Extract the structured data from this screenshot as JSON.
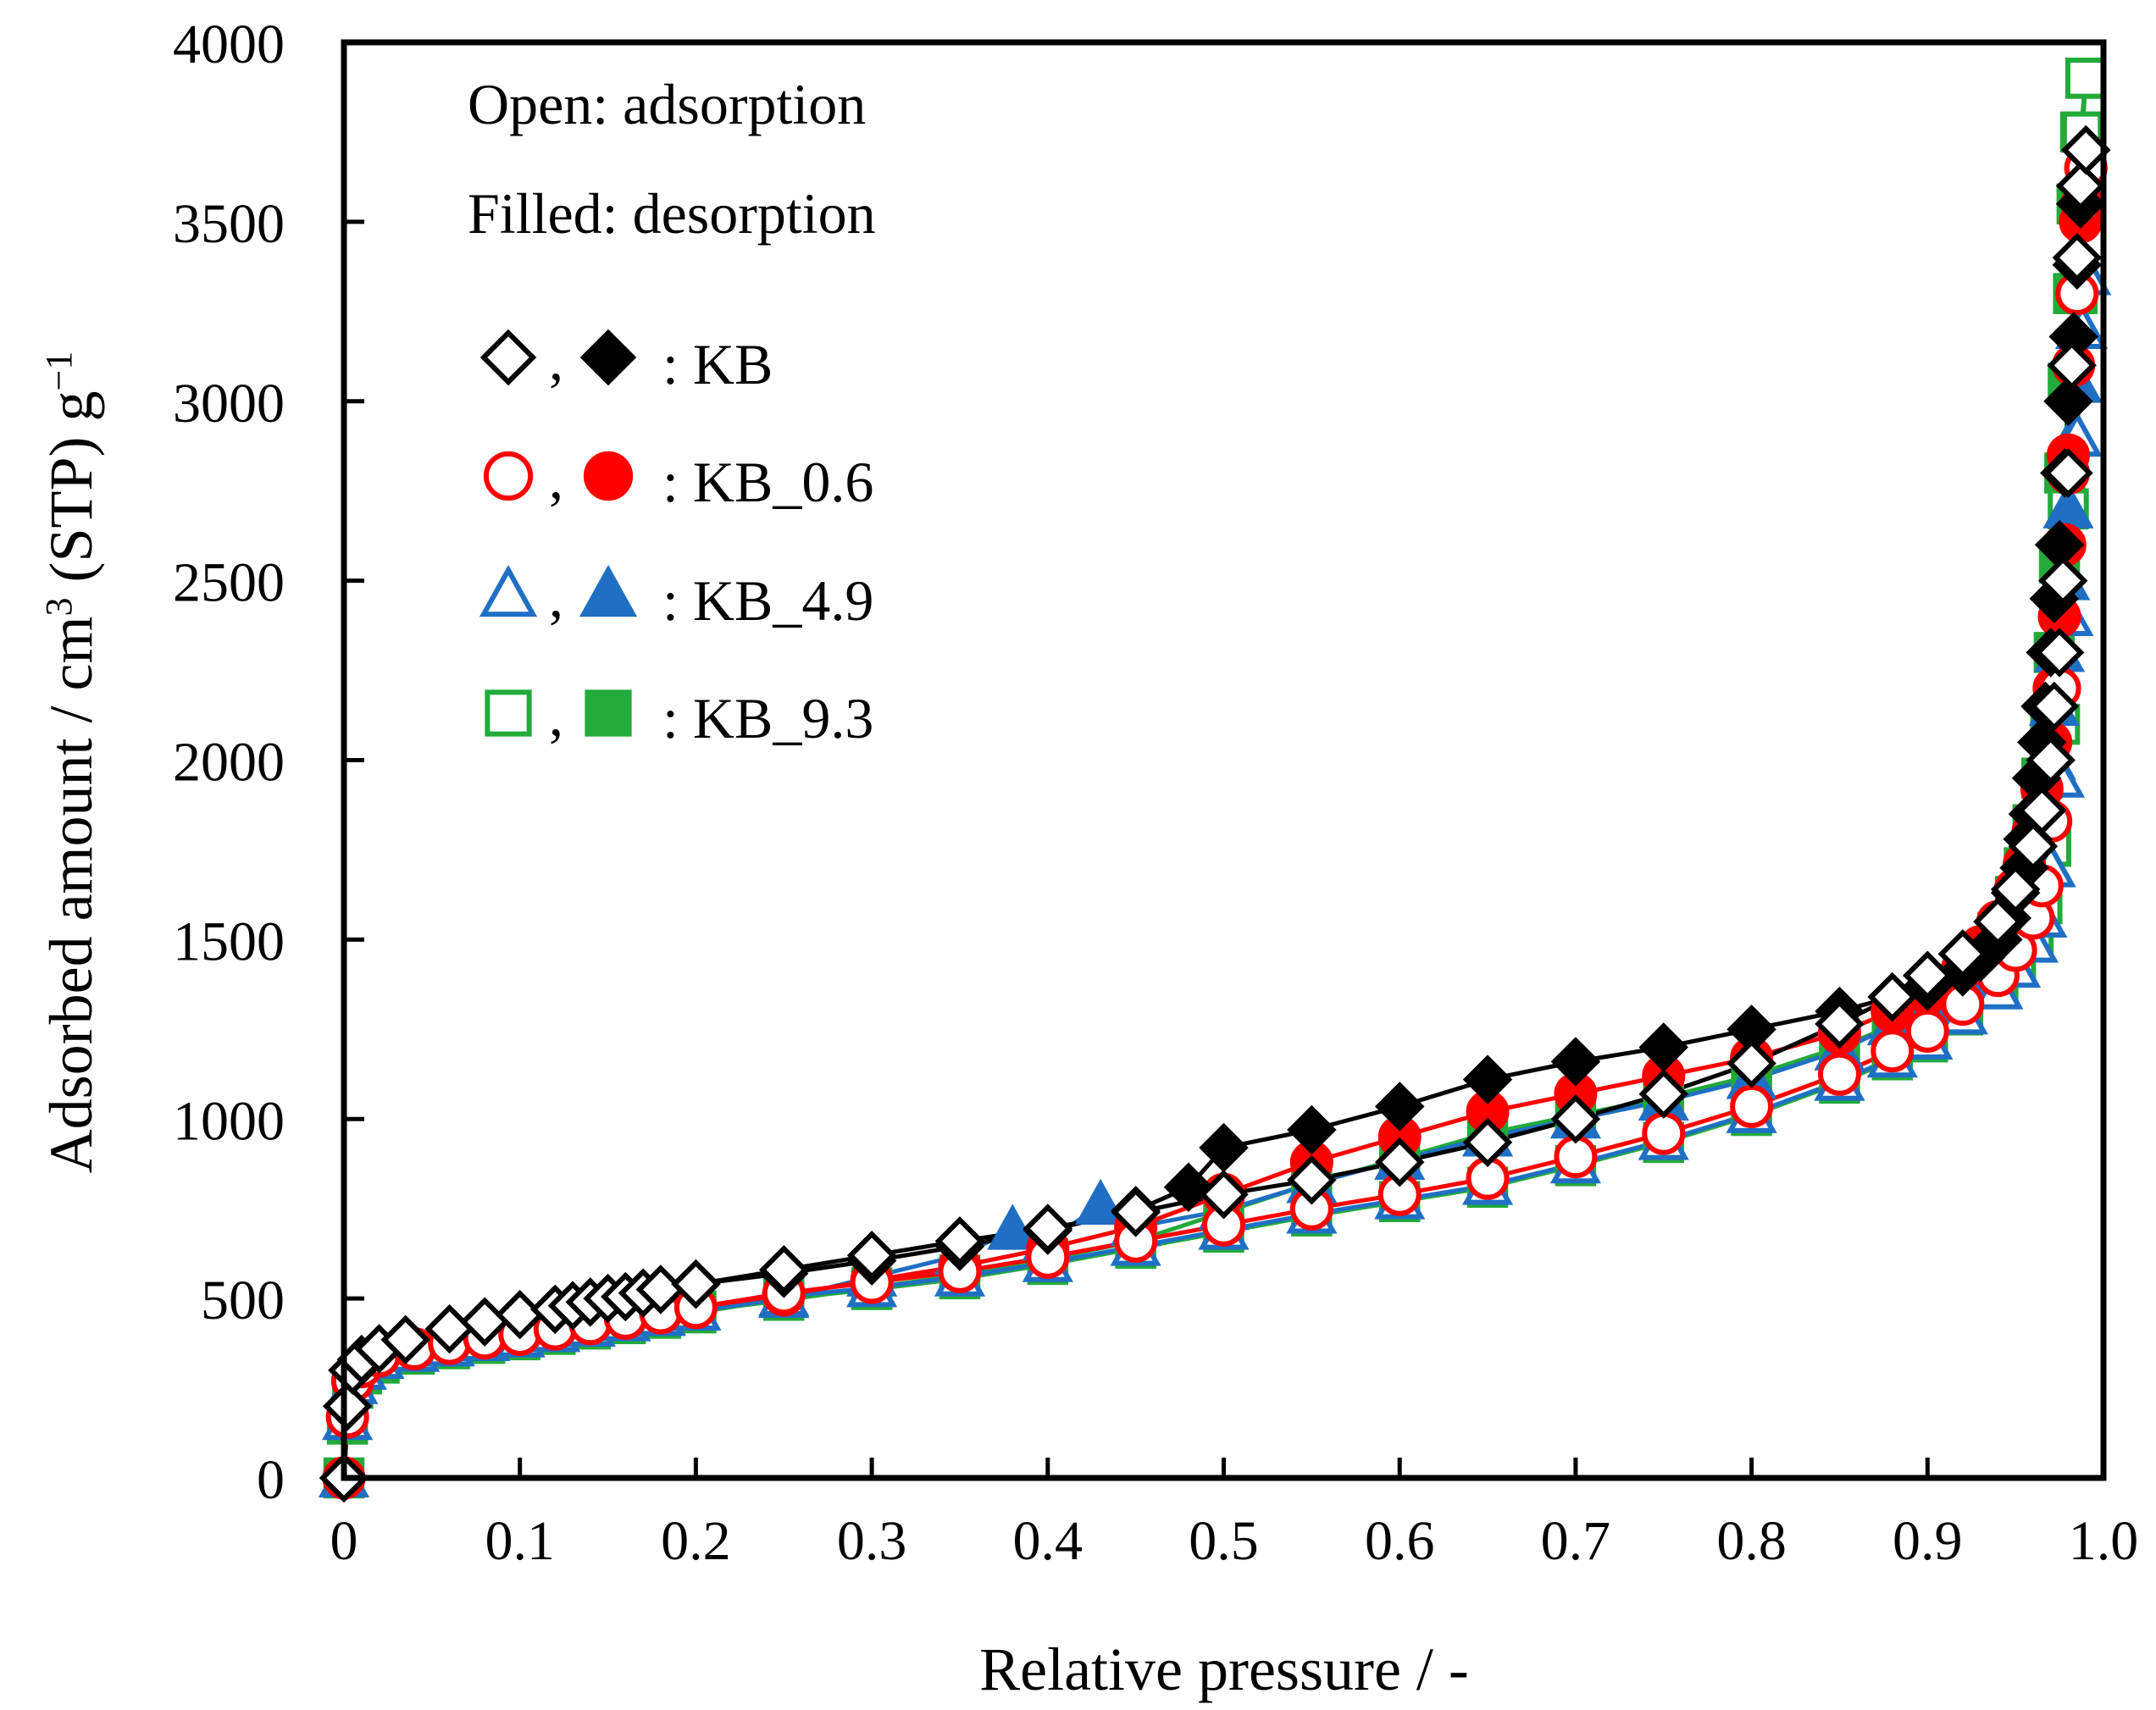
{
  "chart_data": {
    "type": "scatter",
    "xlabel": "Relative pressure / -",
    "ylabel": {
      "main": "Adsorbed amount / cm",
      "sup1": "3",
      "mid": " (STP) g",
      "sup2": "−1"
    },
    "xlim": [
      0,
      1.0
    ],
    "ylim": [
      0,
      4000
    ],
    "x_ticks": [
      0,
      0.1,
      0.2,
      0.3,
      0.4,
      0.5,
      0.6,
      0.7,
      0.8,
      0.9,
      1.0
    ],
    "x_tick_labels": [
      "0",
      "0.1",
      "0.2",
      "0.3",
      "0.4",
      "0.5",
      "0.6",
      "0.7",
      "0.8",
      "0.9",
      "1.0"
    ],
    "y_ticks": [
      0,
      500,
      1000,
      1500,
      2000,
      2500,
      3000,
      3500,
      4000
    ],
    "y_tick_labels": [
      "0",
      "500",
      "1000",
      "1500",
      "2000",
      "2500",
      "3000",
      "3500",
      "4000"
    ],
    "annotations": [
      "Open: adsorption",
      "Filled: desorption"
    ],
    "legend": [
      {
        "label": ": KB",
        "marker": "diamond",
        "color": "#000000"
      },
      {
        "label": ": KB_0.6",
        "marker": "circle",
        "color": "#ff0000"
      },
      {
        "label": ": KB_4.9",
        "marker": "triangle",
        "color": "#1f6fc4"
      },
      {
        "label": ": KB_9.3",
        "marker": "square",
        "color": "#22aa3a"
      }
    ],
    "series": [
      {
        "name": "KB_9.3",
        "marker": "square",
        "color": "#22aa3a",
        "adsorption": {
          "x": [
            0.0,
            0.002,
            0.005,
            0.01,
            0.02,
            0.04,
            0.06,
            0.08,
            0.1,
            0.12,
            0.14,
            0.16,
            0.18,
            0.2,
            0.25,
            0.3,
            0.35,
            0.4,
            0.45,
            0.5,
            0.55,
            0.6,
            0.65,
            0.7,
            0.75,
            0.8,
            0.85,
            0.88,
            0.9,
            0.92,
            0.94,
            0.95,
            0.96,
            0.965,
            0.97,
            0.975,
            0.98,
            0.985,
            0.988,
            0.99
          ],
          "y": [
            0,
            150,
            250,
            290,
            320,
            345,
            360,
            375,
            385,
            400,
            415,
            430,
            445,
            460,
            500,
            525,
            555,
            595,
            640,
            685,
            730,
            770,
            810,
            870,
            935,
            1010,
            1100,
            1165,
            1215,
            1290,
            1370,
            1440,
            1520,
            1600,
            1760,
            2100,
            2700,
            3300,
            3750,
            3900
          ]
        },
        "desorption": {
          "x": [
            0.99,
            0.987,
            0.985,
            0.983,
            0.98,
            0.978,
            0.975,
            0.972,
            0.97,
            0.965,
            0.96,
            0.955,
            0.95,
            0.94,
            0.93,
            0.92,
            0.9,
            0.88,
            0.85,
            0.8,
            0.75,
            0.7,
            0.65,
            0.6,
            0.55,
            0.5,
            0.45,
            0.4,
            0.35,
            0.3,
            0.25,
            0.2
          ],
          "y": [
            3900,
            3750,
            3550,
            3300,
            3050,
            2800,
            2550,
            2300,
            2100,
            1950,
            1820,
            1700,
            1620,
            1520,
            1440,
            1380,
            1310,
            1260,
            1200,
            1120,
            1060,
            1010,
            960,
            890,
            820,
            740,
            660,
            610,
            565,
            530,
            495,
            465
          ]
        }
      },
      {
        "name": "KB_4.9",
        "marker": "triangle",
        "color": "#1f6fc4",
        "adsorption": {
          "x": [
            0.0,
            0.002,
            0.005,
            0.01,
            0.02,
            0.04,
            0.06,
            0.08,
            0.1,
            0.12,
            0.14,
            0.16,
            0.18,
            0.2,
            0.25,
            0.3,
            0.35,
            0.4,
            0.45,
            0.5,
            0.55,
            0.6,
            0.65,
            0.7,
            0.75,
            0.8,
            0.85,
            0.88,
            0.9,
            0.92,
            0.94,
            0.95,
            0.96,
            0.965,
            0.97,
            0.975,
            0.98,
            0.985,
            0.988,
            0.99
          ],
          "y": [
            0,
            160,
            260,
            300,
            330,
            350,
            365,
            380,
            390,
            405,
            420,
            435,
            450,
            465,
            505,
            530,
            560,
            600,
            645,
            690,
            735,
            775,
            815,
            875,
            940,
            1015,
            1105,
            1170,
            1220,
            1290,
            1360,
            1420,
            1490,
            1560,
            1700,
            1950,
            2400,
            2900,
            3200,
            3350
          ]
        },
        "desorption": {
          "x": [
            0.99,
            0.987,
            0.985,
            0.983,
            0.98,
            0.978,
            0.975,
            0.972,
            0.97,
            0.965,
            0.96,
            0.955,
            0.95,
            0.94,
            0.93,
            0.92,
            0.9,
            0.88,
            0.85,
            0.8,
            0.75,
            0.7,
            0.65,
            0.6,
            0.55,
            0.5,
            0.45,
            0.43,
            0.4,
            0.38,
            0.35,
            0.3,
            0.25,
            0.2
          ],
          "y": [
            3350,
            3200,
            3050,
            2900,
            2700,
            2500,
            2300,
            2150,
            2000,
            1880,
            1770,
            1680,
            1600,
            1510,
            1440,
            1380,
            1310,
            1260,
            1190,
            1110,
            1050,
            1000,
            950,
            885,
            820,
            745,
            700,
            760,
            660,
            690,
            620,
            560,
            500,
            465
          ]
        }
      },
      {
        "name": "KB_0.6",
        "marker": "circle",
        "color": "#ff0000",
        "adsorption": {
          "x": [
            0.0,
            0.002,
            0.005,
            0.01,
            0.02,
            0.04,
            0.06,
            0.08,
            0.1,
            0.12,
            0.14,
            0.16,
            0.18,
            0.2,
            0.25,
            0.3,
            0.35,
            0.4,
            0.45,
            0.5,
            0.55,
            0.6,
            0.65,
            0.7,
            0.75,
            0.8,
            0.85,
            0.88,
            0.9,
            0.92,
            0.94,
            0.95,
            0.96,
            0.965,
            0.97,
            0.975,
            0.98,
            0.985,
            0.988,
            0.99
          ],
          "y": [
            0,
            170,
            270,
            310,
            340,
            360,
            375,
            390,
            400,
            415,
            430,
            445,
            460,
            475,
            515,
            545,
            575,
            615,
            660,
            705,
            750,
            790,
            835,
            895,
            960,
            1035,
            1125,
            1190,
            1245,
            1320,
            1400,
            1470,
            1560,
            1650,
            1830,
            2200,
            2800,
            3300,
            3550,
            3650
          ]
        },
        "desorption": {
          "x": [
            0.99,
            0.987,
            0.985,
            0.983,
            0.98,
            0.978,
            0.975,
            0.972,
            0.97,
            0.965,
            0.96,
            0.955,
            0.95,
            0.94,
            0.93,
            0.92,
            0.9,
            0.88,
            0.85,
            0.8,
            0.75,
            0.7,
            0.65,
            0.6,
            0.55,
            0.5,
            0.45,
            0.4,
            0.35,
            0.3,
            0.25,
            0.2
          ],
          "y": [
            3650,
            3500,
            3300,
            3100,
            2850,
            2600,
            2400,
            2200,
            2050,
            1920,
            1800,
            1710,
            1640,
            1550,
            1480,
            1420,
            1350,
            1300,
            1240,
            1170,
            1120,
            1070,
            1020,
            950,
            880,
            790,
            700,
            640,
            590,
            550,
            510,
            475
          ]
        }
      },
      {
        "name": "KB",
        "marker": "diamond",
        "color": "#000000",
        "adsorption": {
          "x": [
            0.0,
            0.002,
            0.005,
            0.01,
            0.02,
            0.035,
            0.06,
            0.08,
            0.1,
            0.12,
            0.13,
            0.14,
            0.15,
            0.16,
            0.17,
            0.18,
            0.2,
            0.25,
            0.3,
            0.35,
            0.4,
            0.45,
            0.5,
            0.55,
            0.6,
            0.65,
            0.7,
            0.75,
            0.8,
            0.85,
            0.88,
            0.9,
            0.92,
            0.94,
            0.95,
            0.96,
            0.965,
            0.97,
            0.972,
            0.975,
            0.977,
            0.98,
            0.982,
            0.985,
            0.987,
            0.99
          ],
          "y": [
            0,
            200,
            300,
            330,
            360,
            385,
            415,
            435,
            455,
            470,
            480,
            490,
            500,
            505,
            515,
            525,
            540,
            580,
            620,
            660,
            695,
            740,
            790,
            830,
            880,
            935,
            1000,
            1070,
            1155,
            1265,
            1340,
            1400,
            1460,
            1550,
            1640,
            1760,
            1860,
            2000,
            2150,
            2300,
            2500,
            2800,
            3100,
            3400,
            3600,
            3700
          ]
        },
        "desorption": {
          "x": [
            0.99,
            0.987,
            0.985,
            0.983,
            0.98,
            0.978,
            0.975,
            0.972,
            0.97,
            0.967,
            0.965,
            0.962,
            0.96,
            0.957,
            0.955,
            0.95,
            0.945,
            0.94,
            0.93,
            0.92,
            0.9,
            0.88,
            0.85,
            0.8,
            0.75,
            0.7,
            0.65,
            0.6,
            0.55,
            0.5,
            0.48,
            0.45,
            0.4,
            0.35,
            0.3,
            0.25,
            0.2
          ],
          "y": [
            3700,
            3550,
            3380,
            3180,
            3000,
            2800,
            2600,
            2450,
            2300,
            2150,
            2050,
            1950,
            1850,
            1780,
            1700,
            1630,
            1560,
            1500,
            1450,
            1410,
            1370,
            1340,
            1300,
            1250,
            1200,
            1160,
            1110,
            1035,
            970,
            920,
            810,
            745,
            690,
            645,
            605,
            570,
            540
          ]
        }
      }
    ]
  }
}
